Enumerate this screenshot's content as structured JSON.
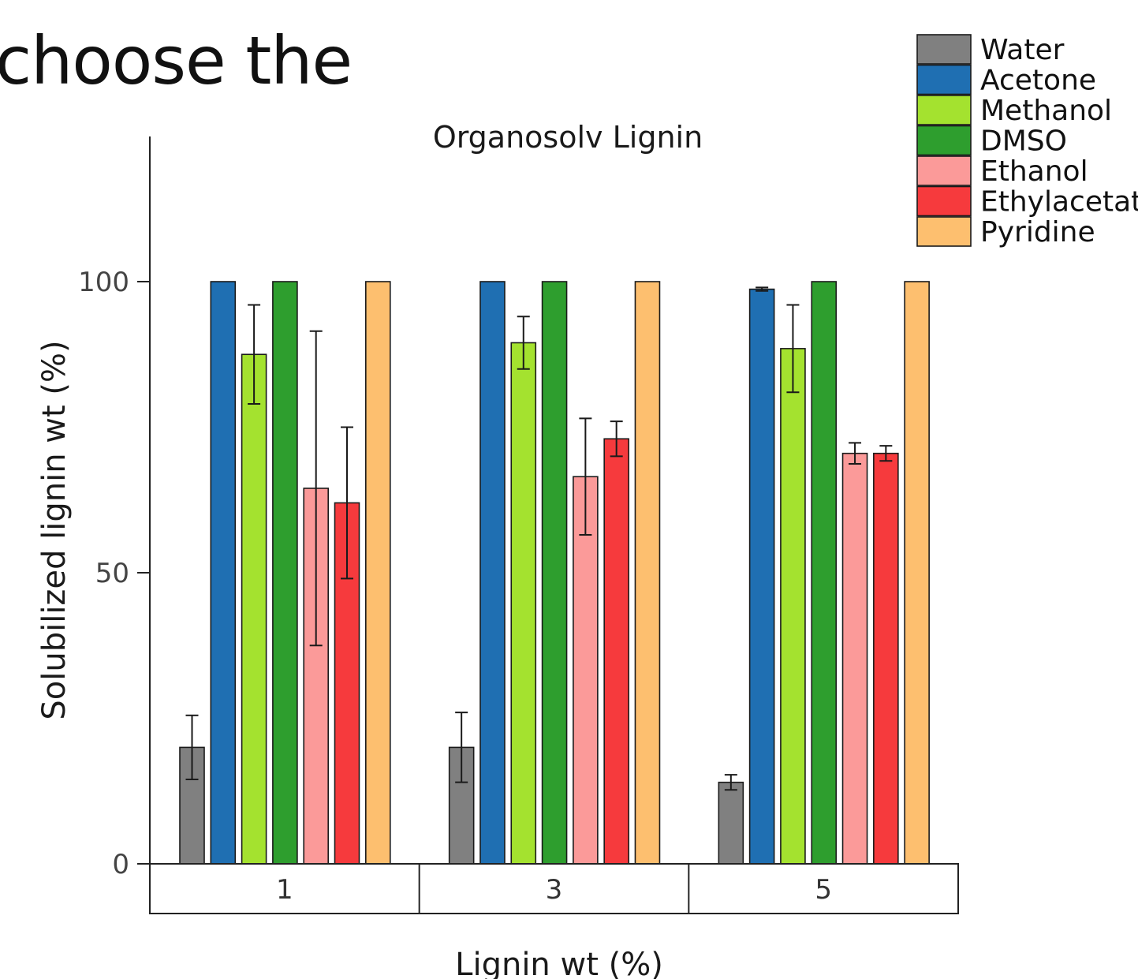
{
  "slide": {
    "heading": "choose the"
  },
  "chart_data": {
    "type": "bar",
    "title": "Organosolv Lignin",
    "xlabel": "Lignin wt (%)",
    "ylabel": "Solubilized lignin wt (%)",
    "categories": [
      "1",
      "3",
      "5"
    ],
    "ylim": [
      0,
      100
    ],
    "yticks": [
      0,
      50,
      100
    ],
    "legend_position": "top-right",
    "grid": false,
    "series": [
      {
        "name": "Water",
        "color": "#808080",
        "values": [
          20,
          20,
          14
        ],
        "errors": [
          5.5,
          6,
          1.3
        ]
      },
      {
        "name": "Acetone",
        "color": "#1f6fb2",
        "values": [
          100,
          100,
          98.7
        ],
        "errors": [
          0,
          0,
          0.3
        ]
      },
      {
        "name": "Methanol",
        "color": "#a4e22f",
        "values": [
          87.5,
          89.5,
          88.5
        ],
        "errors": [
          8.5,
          4.5,
          7.5
        ]
      },
      {
        "name": "DMSO",
        "color": "#2e9e2e",
        "values": [
          100,
          100,
          100
        ],
        "errors": [
          0,
          0,
          0
        ]
      },
      {
        "name": "Ethanol",
        "color": "#fb9a99",
        "values": [
          64.5,
          66.5,
          70.5
        ],
        "errors": [
          27,
          10,
          1.8
        ]
      },
      {
        "name": "Ethylacetate",
        "color": "#f63a3d",
        "values": [
          62,
          73,
          70.5
        ],
        "errors": [
          13,
          3,
          1.3
        ]
      },
      {
        "name": "Pyridine",
        "color": "#fdbf6f",
        "values": [
          100,
          100,
          100
        ],
        "errors": [
          0,
          0,
          0
        ]
      }
    ]
  }
}
